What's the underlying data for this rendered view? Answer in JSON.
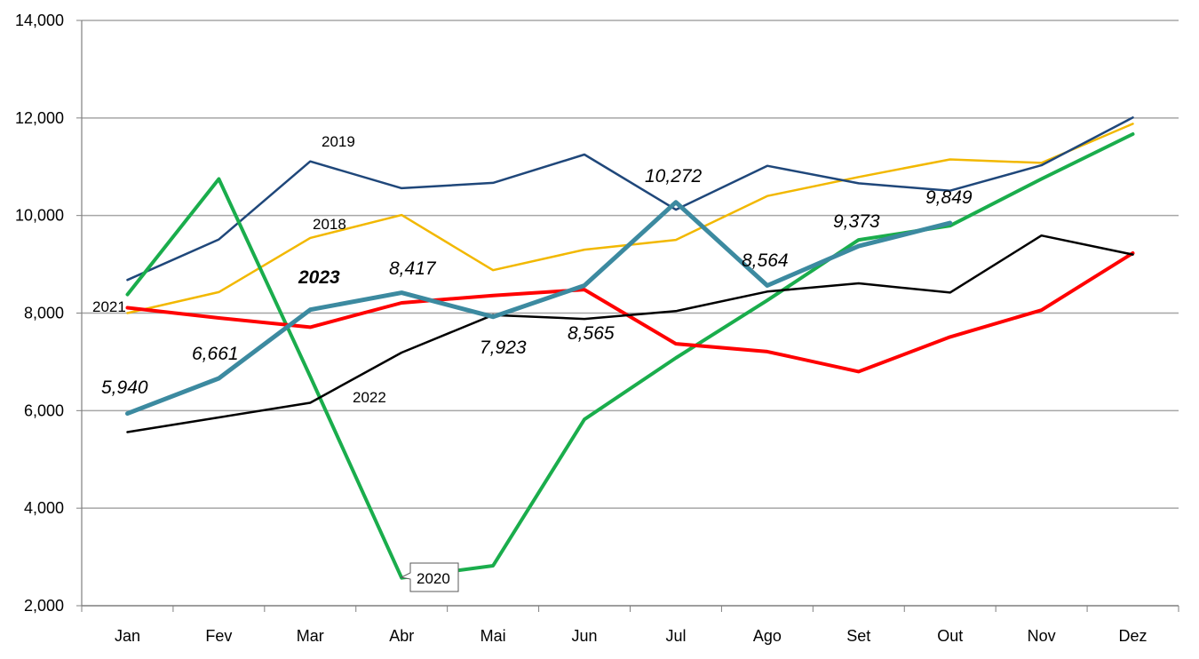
{
  "chart_data": {
    "type": "line",
    "categories": [
      "Jan",
      "Fev",
      "Mar",
      "Abr",
      "Mai",
      "Jun",
      "Jul",
      "Ago",
      "Set",
      "Out",
      "Nov",
      "Dez"
    ],
    "ylim": [
      2000,
      14000
    ],
    "yticks": [
      "2,000",
      "4,000",
      "6,000",
      "8,000",
      "10,000",
      "12,000",
      "14,000"
    ],
    "grid": true,
    "legend": "none",
    "series": [
      {
        "name": "2018",
        "color": "#f2b800",
        "width": 2.5,
        "values": [
          8000,
          8430,
          9540,
          10010,
          8880,
          9300,
          9500,
          10400,
          10790,
          11150,
          11080,
          11880
        ]
      },
      {
        "name": "2019",
        "color": "#1f477a",
        "width": 2.5,
        "values": [
          8680,
          9510,
          11110,
          10560,
          10670,
          11250,
          10120,
          11020,
          10660,
          10510,
          11030,
          12010
        ]
      },
      {
        "name": "2020",
        "color": "#1aad4c",
        "width": 4,
        "values": [
          8380,
          10750,
          6700,
          2570,
          2820,
          5820,
          7080,
          8260,
          9500,
          9790,
          10750,
          11670
        ]
      },
      {
        "name": "2021",
        "color": "#ff0000",
        "width": 4,
        "values": [
          8110,
          7900,
          7710,
          8210,
          8360,
          8480,
          7370,
          7210,
          6800,
          7510,
          8060,
          9230
        ]
      },
      {
        "name": "2022",
        "color": "#000000",
        "width": 2.5,
        "values": [
          5560,
          5860,
          6160,
          7190,
          7960,
          7880,
          8040,
          8440,
          8610,
          8420,
          9590,
          9200
        ]
      },
      {
        "name": "2023",
        "color": "#3c8aa0",
        "width": 5,
        "values": [
          5940,
          6661,
          8070,
          8417,
          7923,
          8565,
          10272,
          8564,
          9373,
          9849,
          null,
          null
        ]
      }
    ],
    "series_labels": [
      {
        "text": "2019",
        "bold": false,
        "italic": false
      },
      {
        "text": "2018",
        "bold": false,
        "italic": false
      },
      {
        "text": "2021",
        "bold": false,
        "italic": false
      },
      {
        "text": "2022",
        "bold": false,
        "italic": false
      },
      {
        "text": "2023",
        "bold": true,
        "italic": true
      },
      {
        "text": "2020",
        "bold": false,
        "italic": false,
        "boxed": true
      }
    ],
    "data_labels": [
      "5,940",
      "6,661",
      "8,417",
      "7,923",
      "8,565",
      "10,272",
      "8,564",
      "9,373",
      "9,849"
    ]
  }
}
